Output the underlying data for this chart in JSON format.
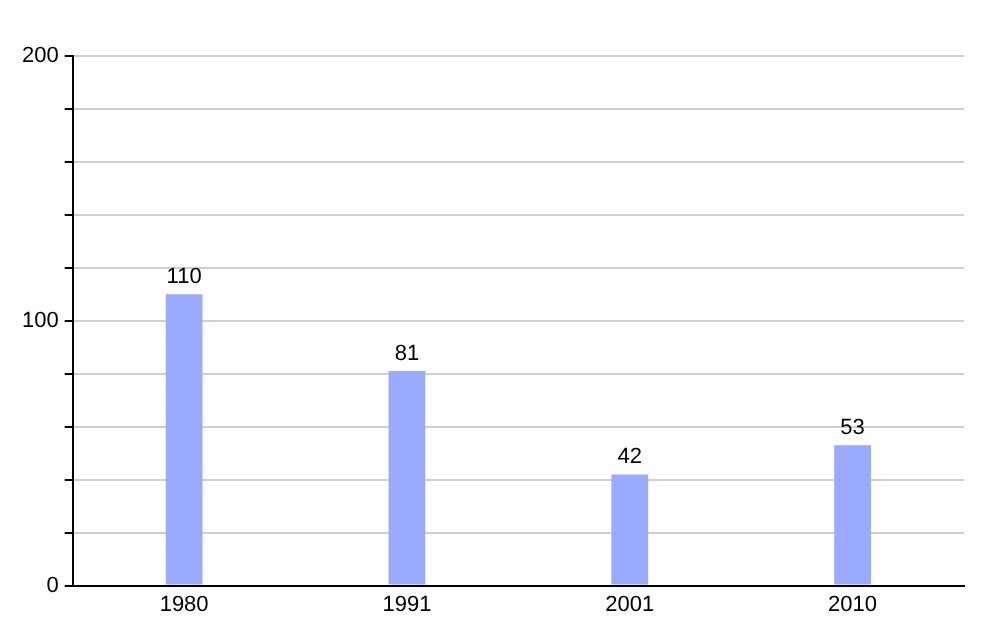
{
  "chart_data": {
    "type": "bar",
    "categories": [
      "1980",
      "1991",
      "2001",
      "2010"
    ],
    "values": [
      110,
      81,
      42,
      53
    ],
    "color": "#99aaff",
    "ylim": [
      0,
      200
    ],
    "yticks": [
      0,
      {
        "value": 20,
        "label": null
      },
      {
        "value": 40,
        "label": null
      },
      {
        "value": 60,
        "label": null
      },
      {
        "value": 80,
        "label": null
      },
      100,
      {
        "value": 120,
        "label": null
      },
      {
        "value": 140,
        "label": null
      },
      {
        "value": 160,
        "label": null
      },
      {
        "value": 180,
        "label": null
      },
      200
    ],
    "grid": "y",
    "data_labels": true
  }
}
